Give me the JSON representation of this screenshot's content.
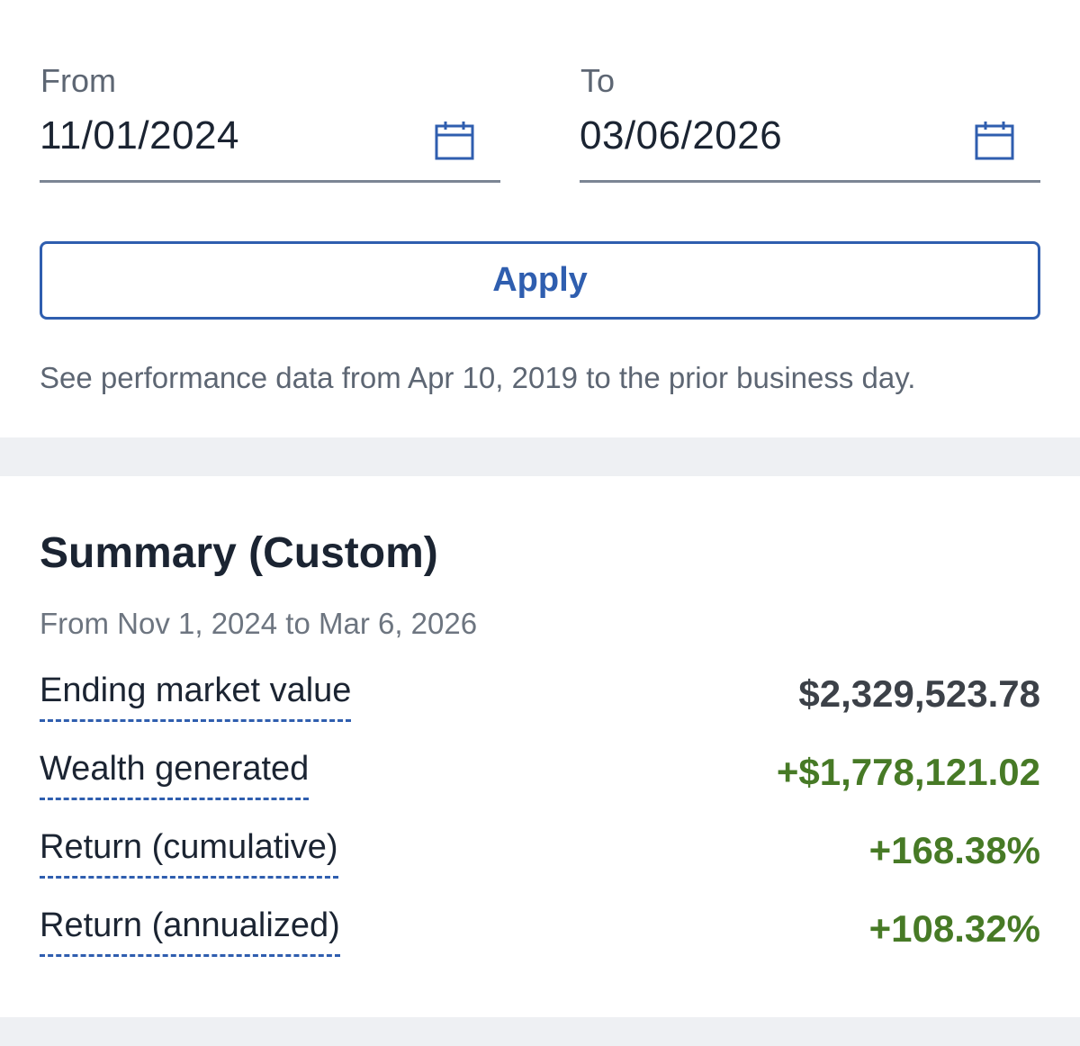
{
  "date_range": {
    "from": {
      "label": "From",
      "value": "11/01/2024",
      "icon": "calendar-icon"
    },
    "to": {
      "label": "To",
      "value": "03/06/2026",
      "icon": "calendar-icon"
    },
    "apply_label": "Apply",
    "note": "See performance data from Apr 10, 2019 to the prior business day."
  },
  "summary": {
    "title": "Summary (Custom)",
    "range_text": "From Nov 1, 2024 to Mar 6, 2026",
    "metrics": [
      {
        "label": "Ending market value",
        "value": "$2,329,523.78"
      },
      {
        "label": "Wealth generated",
        "value": "+$1,778,121.02"
      },
      {
        "label": "Return (cumulative)",
        "value": "+168.38%"
      },
      {
        "label": "Return (annualized)",
        "value": "+108.32%"
      }
    ]
  },
  "colors": {
    "accent": "#2f5eaf",
    "positive": "#477a26",
    "separator": "#eef0f3"
  }
}
